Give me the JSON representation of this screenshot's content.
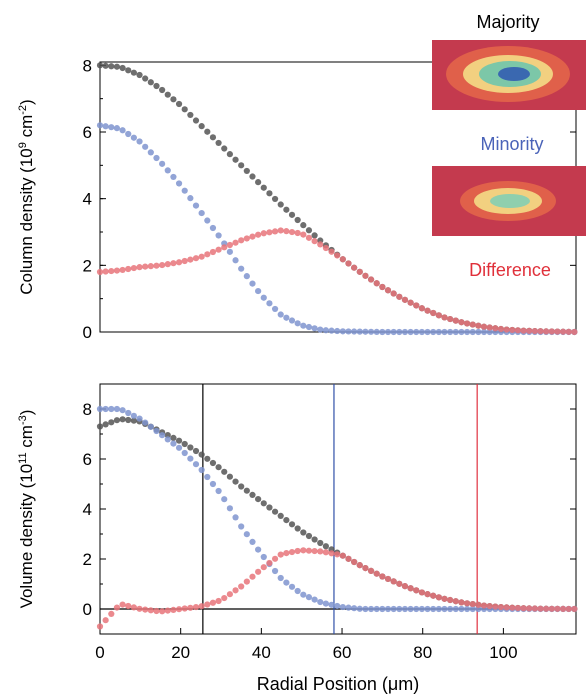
{
  "colors": {
    "majority": "#555555",
    "minority": "#7f94cf",
    "difference": "#e8747a",
    "minority_label": "#4a63b8",
    "difference_label": "#e0303a"
  },
  "labels": {
    "majority": "Majority",
    "minority": "Minority",
    "difference": "Difference"
  },
  "chart_data": [
    {
      "type": "scatter",
      "panel": "top",
      "ylabel_main": "Column density (10",
      "ylabel_exp": "9",
      "ylabel_unit": " cm",
      "ylabel_unit_exp": "-2",
      "ylabel_close": ")",
      "xlim": [
        0,
        118
      ],
      "ylim": [
        0,
        8.1
      ],
      "yticks": [
        "0",
        "2",
        "4",
        "6",
        "8"
      ],
      "series": [
        {
          "name": "Majority",
          "x": [
            0,
            5,
            10,
            15,
            20,
            25,
            30,
            35,
            40,
            45,
            50,
            55,
            60,
            65,
            70,
            75,
            80,
            85,
            90,
            95,
            100,
            105,
            110,
            118
          ],
          "y": [
            8.0,
            7.95,
            7.7,
            7.3,
            6.8,
            6.2,
            5.6,
            5.0,
            4.4,
            3.8,
            3.25,
            2.7,
            2.2,
            1.75,
            1.35,
            1.0,
            0.7,
            0.45,
            0.28,
            0.16,
            0.08,
            0.04,
            0.02,
            0.0
          ]
        },
        {
          "name": "Minority",
          "x": [
            0,
            5,
            10,
            15,
            20,
            25,
            30,
            35,
            40,
            45,
            50,
            55,
            60,
            65,
            70,
            80,
            90,
            100,
            110,
            118
          ],
          "y": [
            6.2,
            6.1,
            5.7,
            5.1,
            4.4,
            3.6,
            2.8,
            1.9,
            1.1,
            0.5,
            0.2,
            0.06,
            0.02,
            0.01,
            0.0,
            0.0,
            0.0,
            0.0,
            0.0,
            0.0
          ]
        },
        {
          "name": "Difference",
          "x": [
            0,
            5,
            10,
            15,
            20,
            25,
            30,
            35,
            40,
            45,
            50,
            55,
            60,
            65,
            70,
            75,
            80,
            85,
            90,
            95,
            100,
            105,
            110,
            118
          ],
          "y": [
            1.8,
            1.85,
            1.95,
            2.0,
            2.1,
            2.25,
            2.5,
            2.75,
            2.95,
            3.05,
            2.95,
            2.6,
            2.2,
            1.75,
            1.35,
            1.0,
            0.7,
            0.45,
            0.28,
            0.16,
            0.08,
            0.04,
            0.02,
            0.0
          ]
        }
      ]
    },
    {
      "type": "scatter",
      "panel": "bottom",
      "ylabel_main": "Volume density (10",
      "ylabel_exp": "11",
      "ylabel_unit": " cm",
      "ylabel_unit_exp": "-3",
      "ylabel_close": ")",
      "xlabel": "Radial Position (μm)",
      "xlim": [
        0,
        118
      ],
      "ylim": [
        -1,
        9
      ],
      "xticks": [
        "0",
        "20",
        "40",
        "60",
        "80",
        "100"
      ],
      "yticks": [
        "0",
        "2",
        "4",
        "6",
        "8"
      ],
      "vlines": [
        25.5,
        58,
        93.5
      ],
      "series": [
        {
          "name": "Majority",
          "x": [
            0,
            5,
            10,
            15,
            20,
            25,
            30,
            35,
            40,
            45,
            50,
            55,
            60,
            65,
            70,
            75,
            80,
            85,
            90,
            95,
            100,
            105,
            110,
            118
          ],
          "y": [
            7.3,
            7.6,
            7.5,
            7.1,
            6.7,
            6.2,
            5.6,
            4.9,
            4.3,
            3.7,
            3.1,
            2.6,
            2.15,
            1.7,
            1.3,
            0.95,
            0.65,
            0.42,
            0.25,
            0.14,
            0.07,
            0.03,
            0.01,
            0.0
          ]
        },
        {
          "name": "Minority",
          "x": [
            0,
            5,
            10,
            15,
            20,
            25,
            30,
            35,
            40,
            45,
            50,
            55,
            60,
            65,
            70,
            80,
            90,
            100,
            110,
            118
          ],
          "y": [
            8.0,
            8.0,
            7.6,
            7.0,
            6.4,
            5.6,
            4.6,
            3.3,
            2.2,
            1.2,
            0.6,
            0.25,
            0.08,
            0.0,
            0.0,
            0.0,
            0.0,
            0.0,
            0.0,
            0.0
          ]
        },
        {
          "name": "Difference",
          "x": [
            0,
            5,
            10,
            15,
            20,
            25,
            30,
            35,
            40,
            45,
            50,
            55,
            60,
            65,
            70,
            75,
            80,
            85,
            90,
            95,
            100,
            105,
            110,
            118
          ],
          "y": [
            -0.7,
            0.2,
            0.0,
            -0.1,
            0.0,
            0.1,
            0.35,
            0.9,
            1.6,
            2.2,
            2.35,
            2.3,
            2.15,
            1.7,
            1.3,
            0.95,
            0.65,
            0.42,
            0.25,
            0.14,
            0.07,
            0.03,
            0.01,
            0.0
          ]
        }
      ]
    }
  ]
}
